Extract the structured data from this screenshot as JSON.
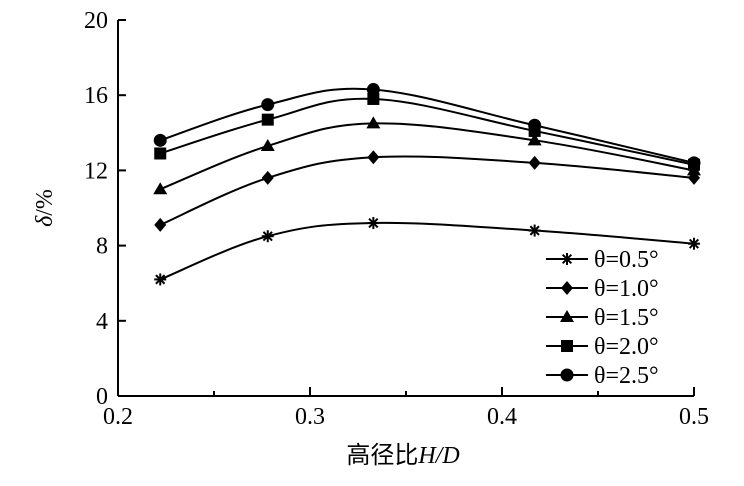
{
  "chart_data": {
    "type": "line",
    "xlabel_prefix": "高径比",
    "xlabel_var": "H/D",
    "ylabel_var": "δ",
    "ylabel_unit": "/%",
    "xlim": [
      0.2,
      0.5
    ],
    "ylim": [
      0,
      20
    ],
    "xticks": [
      0.2,
      0.3,
      0.4,
      0.5
    ],
    "xtick_labels": [
      "0.2",
      "0.3",
      "0.4",
      "0.5"
    ],
    "yticks": [
      0,
      4,
      8,
      12,
      16,
      20
    ],
    "ytick_labels": [
      "0",
      "4",
      "8",
      "12",
      "16",
      "20"
    ],
    "grid": false,
    "legend_position": "bottom-right",
    "x": [
      0.222,
      0.278,
      0.333,
      0.417,
      0.5
    ],
    "series": [
      {
        "name": "θ=0.5°",
        "marker": "asterisk",
        "values": [
          6.2,
          8.5,
          9.2,
          8.8,
          8.1
        ]
      },
      {
        "name": "θ=1.0°",
        "marker": "diamond",
        "values": [
          9.1,
          11.6,
          12.7,
          12.4,
          11.6
        ]
      },
      {
        "name": "θ=1.5°",
        "marker": "triangle",
        "values": [
          11.0,
          13.3,
          14.5,
          13.6,
          12.0
        ]
      },
      {
        "name": "θ=2.0°",
        "marker": "square",
        "values": [
          12.9,
          14.7,
          15.8,
          14.1,
          12.3
        ]
      },
      {
        "name": "θ=2.5°",
        "marker": "circle",
        "values": [
          13.6,
          15.5,
          16.3,
          14.4,
          12.4
        ]
      }
    ]
  }
}
